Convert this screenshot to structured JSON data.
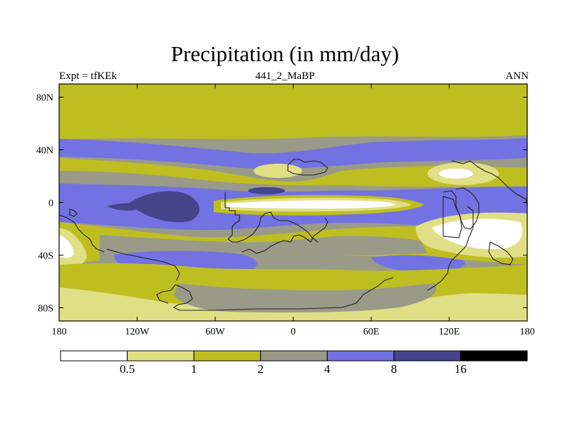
{
  "title": "Precipitation (in mm/day)",
  "subtitle_left": "Expt = tfKEk",
  "subtitle_center": "441_2_MaBP",
  "subtitle_right": "ANN",
  "lat_ticks": [
    {
      "label": "80N",
      "lat": 80
    },
    {
      "label": "40N",
      "lat": 40
    },
    {
      "label": "0",
      "lat": 0
    },
    {
      "label": "40S",
      "lat": -40
    },
    {
      "label": "80S",
      "lat": -80
    }
  ],
  "lon_ticks": [
    {
      "label": "180",
      "lon": -180
    },
    {
      "label": "120W",
      "lon": -120
    },
    {
      "label": "60W",
      "lon": -60
    },
    {
      "label": "0",
      "lon": 0
    },
    {
      "label": "60E",
      "lon": 60
    },
    {
      "label": "120E",
      "lon": 120
    },
    {
      "label": "180",
      "lon": 180
    }
  ],
  "colorbar": {
    "colors": [
      "#ffffff",
      "#e0df86",
      "#bfbe21",
      "#9a9a88",
      "#7272e2",
      "#45458c",
      "#000000"
    ],
    "labels": [
      "0.5",
      "1",
      "2",
      "4",
      "8",
      "16"
    ]
  },
  "colors": {
    "white": "#ffffff",
    "light_yellow": "#e0df86",
    "olive": "#bfbe21",
    "gray": "#9a9a88",
    "blue": "#7272e2",
    "dark_blue": "#45458c",
    "black": "#000000"
  }
}
